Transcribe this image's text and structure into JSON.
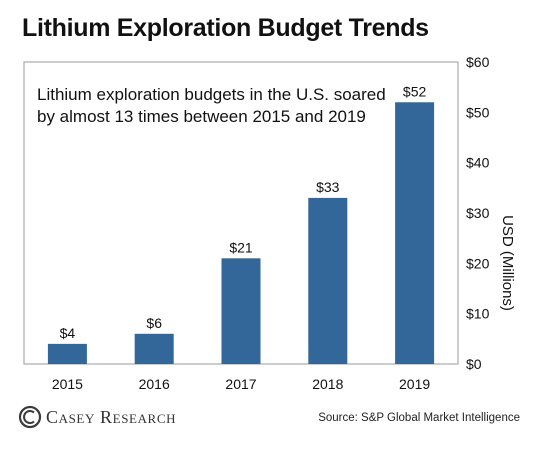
{
  "title": "Lithium Exploration Budget Trends",
  "annotation_lines": [
    "Lithium exploration budgets in the U.S. soared",
    "by almost 13 times between 2015 and 2019"
  ],
  "logo_text": "Casey Research",
  "source": "Source: S&P Global Market Intelligence",
  "colors": {
    "bar": "#336699",
    "frame": "#9a9a9a",
    "text": "#111111"
  },
  "chart_data": {
    "type": "bar",
    "categories": [
      "2015",
      "2016",
      "2017",
      "2018",
      "2019"
    ],
    "values": [
      4,
      6,
      21,
      33,
      52
    ],
    "value_labels": [
      "$4",
      "$6",
      "$21",
      "$33",
      "$52"
    ],
    "ylabel": "USD (Millions)",
    "ylim": [
      0,
      60
    ],
    "yticks": [
      0,
      10,
      20,
      30,
      40,
      50,
      60
    ],
    "ytick_labels": [
      "$0",
      "$10",
      "$20",
      "$30",
      "$40",
      "$50",
      "$60"
    ],
    "yaxis_side": "right",
    "grid": false
  }
}
